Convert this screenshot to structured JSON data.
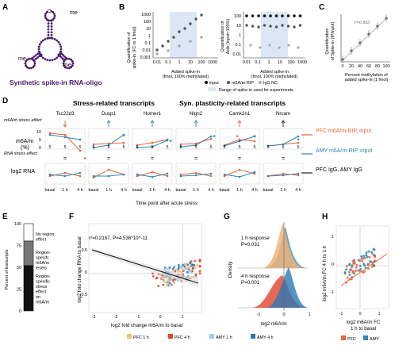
{
  "panels": {
    "A": {
      "label": "A",
      "me_labels": [
        "me",
        "me",
        "me"
      ],
      "title": "Synthetic spike-in RNA-oligo"
    },
    "B": {
      "label": "B",
      "left_ylabel_1": "Quantification of",
      "left_ylabel_2": "spike-in (FC to 1 fmol)",
      "right_ylabel_1": "Quantification of",
      "right_ylabel_2": "Actb (input=100%)",
      "left_yticks": [
        "1000",
        "100",
        "10",
        "1",
        "0.1",
        "0.01",
        "0.001"
      ],
      "right_yticks": [
        "100",
        "10",
        "1",
        "0.1",
        "0.01"
      ],
      "xticks": [
        "0.01",
        "0.1",
        "1",
        "10",
        "100",
        "1000"
      ],
      "xlabel_1": "Added spike-in",
      "xlabel_2": "(fmol, 100% methylated)",
      "legend_input": "input",
      "legend_m6a": "m6A/m-RIP",
      "legend_igg": "IgG NC",
      "range_note": "Range of spike-in used for experiments"
    },
    "C": {
      "label": "C",
      "ylabel_1": "Quantification",
      "ylabel_2": "of Spike-in (IP/input)",
      "r2": "r²=0.992",
      "xticks": [
        "0",
        "20",
        "40",
        "60",
        "80",
        "100"
      ],
      "xlabel_1": "Percent methylation of",
      "xlabel_2": "added spike-in (1 fmol)"
    },
    "D": {
      "label": "D",
      "header_stress": "Stress-related transcripts",
      "header_plast": "Syn. plasticity-related transcripts",
      "m6a_effect": "m6A/m stress effect",
      "rna_effect": "RNA stress effect",
      "ylabel_m6a_1": "m6A/m",
      "ylabel_m6a_2": "(%)",
      "ylabel_rna": "log2 RNA",
      "genes": [
        "Tsc22d3",
        "Dusp1",
        "Homer1",
        "Nlgn2",
        "Camk2n1",
        "Nrcam"
      ],
      "yticks_m6a": [
        "10",
        "5",
        "0"
      ],
      "xticks": [
        "basal",
        "1 h",
        "4 h"
      ],
      "xlabel": "Time point after acute stress",
      "legend_pfc": "PFC m6A/m-RIP, input",
      "legend_amy": "AMY m6A/m-RIP, input",
      "legend_igg": "PFC IgG, AMY IgG",
      "color_pfc": "#e8643a",
      "color_amy": "#2f86b7"
    },
    "E": {
      "label": "E",
      "ylabel": "Percent of transcripts",
      "yticks": [
        "100",
        "75",
        "50",
        "25",
        "0"
      ],
      "categories": [
        {
          "name": "No region effect",
          "fraction": 0.2
        },
        {
          "name": "Region-specifc m6A/m levels",
          "fraction": 0.28
        },
        {
          "name": "Region-specific stress effect on m6A/m",
          "fraction": 0.52
        }
      ]
    },
    "F": {
      "label": "F",
      "stats": "r²=0.2167, P=4.536*10^-11",
      "ylabel_1": "log2 fold change RNA to basal",
      "xlabel": "log2 fold change m6A/m to basal",
      "xticks": [
        "-3",
        "-2",
        "-1",
        "0",
        "1"
      ],
      "yticks": [
        "0.5",
        "0",
        "-0.5"
      ],
      "legend": [
        "PFC 1 h",
        "PFC 4 h",
        "AMY 1 h",
        "AMY 4 h"
      ],
      "legend_colors": [
        "#f5c07a",
        "#e2412c",
        "#8fd0ec",
        "#2a78b5"
      ]
    },
    "G": {
      "label": "G",
      "ylabel": "Density",
      "resp1": "1 h response",
      "p1": "P=0.031",
      "resp2": "4 h response",
      "p2": "P=0.001",
      "xticks": [
        "-1",
        "0",
        "1"
      ],
      "xlabel": "log2 m6A/m"
    },
    "H": {
      "label": "H",
      "ylabel": "log2 m6A/m FC 4 h to 1 h",
      "xlabel_1": "log2 m6A/m FC",
      "xlabel_2": "1 h to basal",
      "xticks": [
        "-1",
        "0",
        "1"
      ],
      "yticks": [
        "1",
        "0",
        "-1"
      ],
      "legend": [
        "PFC",
        "AMY"
      ]
    }
  }
}
